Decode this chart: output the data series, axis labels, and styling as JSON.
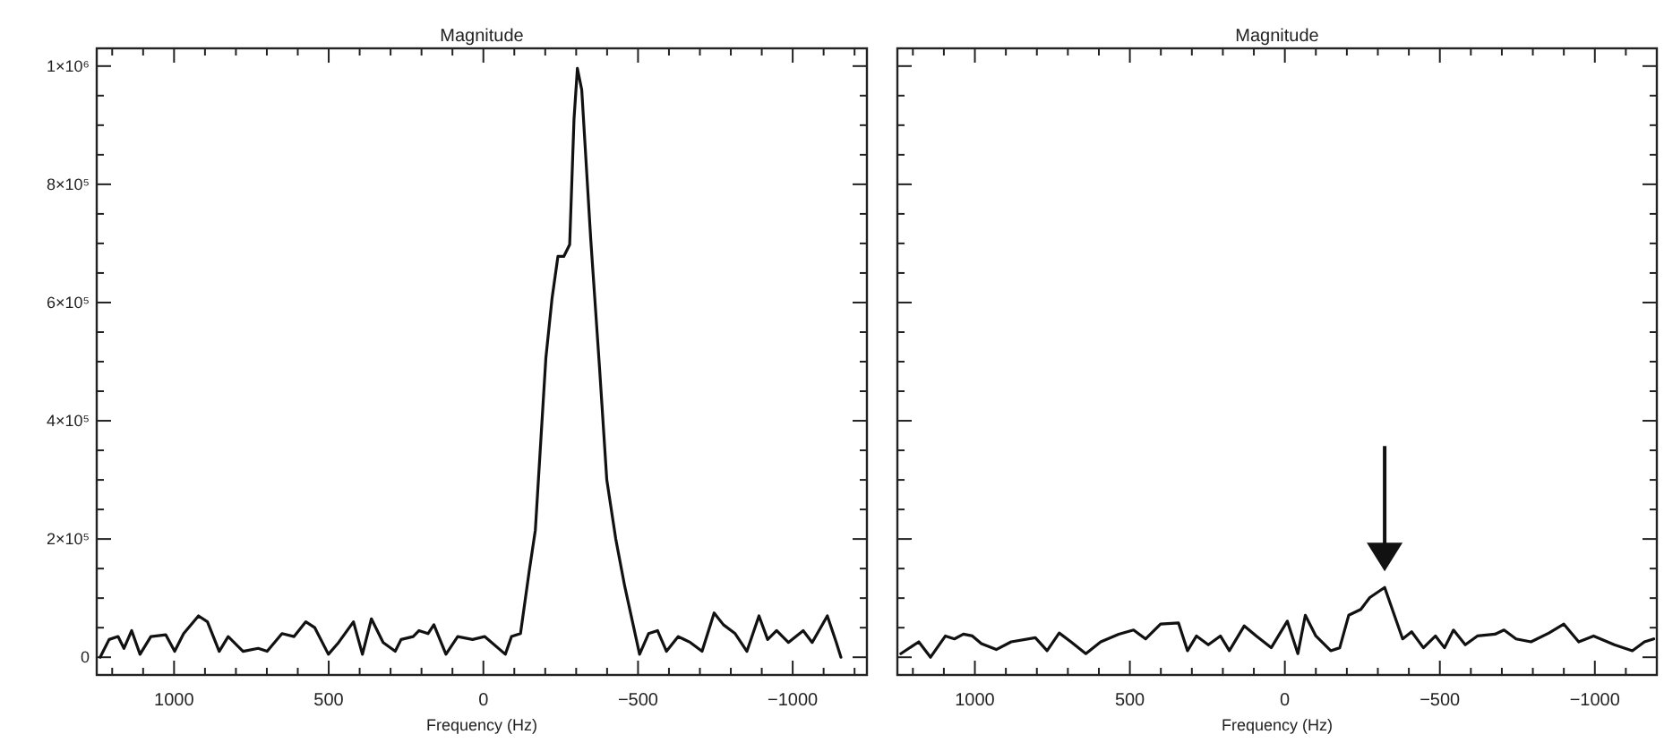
{
  "chart_data": [
    {
      "type": "line",
      "title": "Magnitude",
      "xlabel": "Frequency (Hz)",
      "xlim": [
        1250,
        -1240
      ],
      "ylim": [
        -30000,
        1030000
      ],
      "xticks": [
        {
          "value": 1200,
          "label": null
        },
        {
          "value": 1100,
          "label": null
        },
        1000,
        {
          "value": 900,
          "label": null
        },
        {
          "value": 800,
          "label": null
        },
        {
          "value": 700,
          "label": null
        },
        {
          "value": 600,
          "label": null
        },
        500,
        {
          "value": 400,
          "label": null
        },
        {
          "value": 300,
          "label": null
        },
        {
          "value": 200,
          "label": null
        },
        {
          "value": 100,
          "label": null
        },
        0,
        {
          "value": -100,
          "label": null
        },
        {
          "value": -200,
          "label": null
        },
        {
          "value": -300,
          "label": null
        },
        {
          "value": -400,
          "label": null
        },
        {
          "value": -500,
          "label": "−500"
        },
        {
          "value": -600,
          "label": null
        },
        {
          "value": -700,
          "label": null
        },
        {
          "value": -800,
          "label": null
        },
        {
          "value": -900,
          "label": null
        },
        {
          "value": -1000,
          "label": "−1000"
        },
        {
          "value": -1100,
          "label": null
        },
        {
          "value": -1200,
          "label": null
        }
      ],
      "yticks": [
        0,
        {
          "value": 50000,
          "label": null
        },
        {
          "value": 100000,
          "label": null
        },
        {
          "value": 150000,
          "label": null
        },
        {
          "value": 200000,
          "label": "2×10⁵"
        },
        {
          "value": 250000,
          "label": null
        },
        {
          "value": 300000,
          "label": null
        },
        {
          "value": 350000,
          "label": null
        },
        {
          "value": 400000,
          "label": "4×10⁵"
        },
        {
          "value": 450000,
          "label": null
        },
        {
          "value": 500000,
          "label": null
        },
        {
          "value": 550000,
          "label": null
        },
        {
          "value": 600000,
          "label": "6×10⁵"
        },
        {
          "value": 650000,
          "label": null
        },
        {
          "value": 700000,
          "label": null
        },
        {
          "value": 750000,
          "label": null
        },
        {
          "value": 800000,
          "label": "8×10⁵"
        },
        {
          "value": 850000,
          "label": null
        },
        {
          "value": 900000,
          "label": null
        },
        {
          "value": 950000,
          "label": null
        },
        {
          "value": 1000000,
          "label": "1×10⁶"
        }
      ],
      "line_style": "solid",
      "marker": "none",
      "series": [
        {
          "color": "#111111",
          "x": [
            1239,
            1210,
            1181,
            1162,
            1137,
            1110,
            1075,
            1027,
            998,
            969,
            921,
            892,
            854,
            825,
            777,
            728,
            699,
            651,
            612,
            574,
            545,
            501,
            468,
            420,
            391,
            362,
            324,
            285,
            266,
            227,
            208,
            179,
            160,
            121,
            83,
            35,
            -4,
            -71,
            -91,
            -120,
            -148,
            -168,
            -202,
            -222,
            -241,
            -260,
            -279,
            -293,
            -304,
            -318,
            -347,
            -376,
            -399,
            -428,
            -457,
            -505,
            -534,
            -563,
            -592,
            -630,
            -669,
            -707,
            -746,
            -776,
            -814,
            -852,
            -891,
            -919,
            -948,
            -986,
            -1034,
            -1063,
            -1112,
            -1141,
            -1156
          ],
          "values": [
            0,
            30000,
            35000,
            15000,
            45000,
            5000,
            35000,
            38000,
            10000,
            40000,
            70000,
            60000,
            10000,
            35000,
            10000,
            15000,
            10000,
            40000,
            35000,
            60000,
            50000,
            5000,
            25000,
            60000,
            5000,
            65000,
            25000,
            10000,
            30000,
            35000,
            45000,
            40000,
            55000,
            5000,
            35000,
            30000,
            35000,
            5000,
            35000,
            40000,
            145000,
            215000,
            506000,
            607000,
            678000,
            678000,
            698000,
            910000,
            996000,
            960000,
            708000,
            486000,
            300000,
            200000,
            120000,
            5000,
            40000,
            45000,
            10000,
            35000,
            25000,
            10000,
            75000,
            55000,
            40000,
            10000,
            70000,
            30000,
            45000,
            25000,
            45000,
            25000,
            70000,
            25000,
            0
          ]
        }
      ]
    },
    {
      "type": "line",
      "title": "Magnitude",
      "xlabel": "Frequency (Hz)",
      "xlim": [
        1250,
        -1200
      ],
      "ylim": [
        -30000,
        1030000
      ],
      "tick_labels": "x",
      "yticks": [
        {
          "value": 0,
          "label": null
        },
        {
          "value": 50000,
          "label": null
        },
        {
          "value": 100000,
          "label": null
        },
        {
          "value": 150000,
          "label": null
        },
        {
          "value": 200000,
          "label": null
        },
        {
          "value": 250000,
          "label": null
        },
        {
          "value": 300000,
          "label": null
        },
        {
          "value": 350000,
          "label": null
        },
        {
          "value": 400000,
          "label": null
        },
        {
          "value": 450000,
          "label": null
        },
        {
          "value": 500000,
          "label": null
        },
        {
          "value": 550000,
          "label": null
        },
        {
          "value": 600000,
          "label": null
        },
        {
          "value": 650000,
          "label": null
        },
        {
          "value": 700000,
          "label": null
        },
        {
          "value": 750000,
          "label": null
        },
        {
          "value": 800000,
          "label": null
        },
        {
          "value": 850000,
          "label": null
        },
        {
          "value": 900000,
          "label": null
        },
        {
          "value": 950000,
          "label": null
        },
        {
          "value": 1000000,
          "label": null
        }
      ],
      "xticks": [
        {
          "value": 1200,
          "label": null
        },
        {
          "value": 1100,
          "label": null
        },
        1000,
        {
          "value": 900,
          "label": null
        },
        {
          "value": 800,
          "label": null
        },
        {
          "value": 700,
          "label": null
        },
        {
          "value": 600,
          "label": null
        },
        500,
        {
          "value": 400,
          "label": null
        },
        {
          "value": 300,
          "label": null
        },
        {
          "value": 200,
          "label": null
        },
        {
          "value": 100,
          "label": null
        },
        0,
        {
          "value": -100,
          "label": null
        },
        {
          "value": -200,
          "label": null
        },
        {
          "value": -300,
          "label": null
        },
        {
          "value": -400,
          "label": null
        },
        {
          "value": -500,
          "label": "−500"
        },
        {
          "value": -600,
          "label": null
        },
        {
          "value": -700,
          "label": null
        },
        {
          "value": -800,
          "label": null
        },
        {
          "value": -900,
          "label": null
        },
        {
          "value": -1000,
          "label": "−1000"
        },
        {
          "value": -1100,
          "label": null
        }
      ],
      "line_style": "solid",
      "marker": "none",
      "series": [
        {
          "color": "#111111",
          "x": [
            1239,
            1181,
            1143,
            1095,
            1066,
            1037,
            1008,
            979,
            931,
            883,
            805,
            767,
            728,
            690,
            642,
            594,
            536,
            488,
            449,
            401,
            343,
            314,
            285,
            247,
            208,
            179,
            131,
            92,
            44,
            -8,
            -42,
            -66,
            -100,
            -148,
            -177,
            -206,
            -245,
            -274,
            -322,
            -380,
            -409,
            -447,
            -486,
            -515,
            -544,
            -582,
            -621,
            -678,
            -707,
            -746,
            -794,
            -852,
            -900,
            -948,
            -996,
            -1063,
            -1121,
            -1160,
            -1190
          ],
          "values": [
            6000,
            26000,
            0,
            36000,
            31000,
            39000,
            36000,
            23000,
            13000,
            26000,
            33000,
            11000,
            41000,
            26000,
            6000,
            26000,
            39000,
            46000,
            31000,
            56000,
            58000,
            11000,
            36000,
            21000,
            36000,
            11000,
            53000,
            36000,
            16000,
            61000,
            6000,
            71000,
            36000,
            11000,
            16000,
            71000,
            81000,
            101000,
            118000,
            31000,
            43000,
            16000,
            36000,
            16000,
            46000,
            21000,
            36000,
            39000,
            46000,
            31000,
            26000,
            41000,
            56000,
            26000,
            36000,
            21000,
            11000,
            26000,
            31000
          ]
        }
      ]
    }
  ]
}
